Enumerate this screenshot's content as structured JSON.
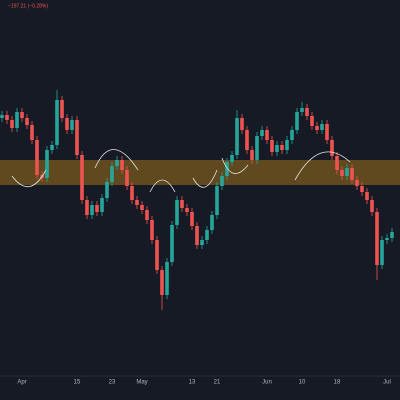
{
  "chart_data": {
    "type": "candlestick",
    "header": "−197.21 (−0.28%)",
    "categories": [
      null,
      null,
      null,
      null,
      "Apr",
      null,
      null,
      null,
      null,
      null,
      null,
      null,
      null,
      null,
      null,
      "15",
      null,
      null,
      null,
      null,
      null,
      null,
      "23",
      null,
      null,
      null,
      null,
      null,
      "May",
      null,
      null,
      null,
      null,
      null,
      null,
      null,
      null,
      null,
      "13",
      null,
      null,
      null,
      null,
      "21",
      null,
      null,
      null,
      null,
      null,
      null,
      null,
      null,
      null,
      "Jun",
      null,
      null,
      null,
      null,
      null,
      null,
      "10",
      null,
      null,
      null,
      null,
      null,
      null,
      "18",
      null,
      null,
      null,
      null,
      null,
      null,
      null,
      null,
      null,
      "Jul",
      null
    ],
    "open": [
      282,
      285,
      280,
      272,
      288,
      282,
      275,
      260,
      225,
      222,
      250,
      255,
      300,
      282,
      270,
      280,
      245,
      200,
      185,
      195,
      188,
      202,
      218,
      234,
      240,
      230,
      214,
      200,
      195,
      190,
      180,
      160,
      130,
      105,
      138,
      175,
      200,
      192,
      188,
      174,
      155,
      160,
      170,
      185,
      214,
      224,
      238,
      245,
      282,
      270,
      250,
      240,
      264,
      270,
      260,
      248,
      255,
      250,
      260,
      270,
      288,
      292,
      284,
      274,
      270,
      276,
      260,
      244,
      230,
      224,
      232,
      220,
      214,
      208,
      200,
      188,
      135,
      160,
      162
    ],
    "high": [
      289,
      289,
      284,
      292,
      292,
      286,
      279,
      264,
      229,
      254,
      259,
      310,
      304,
      286,
      284,
      284,
      249,
      204,
      199,
      199,
      206,
      222,
      238,
      244,
      244,
      234,
      218,
      204,
      199,
      194,
      184,
      164,
      134,
      142,
      179,
      204,
      204,
      196,
      192,
      178,
      164,
      174,
      189,
      218,
      228,
      242,
      249,
      290,
      286,
      274,
      254,
      268,
      274,
      274,
      264,
      259,
      259,
      264,
      274,
      292,
      298,
      296,
      288,
      278,
      280,
      280,
      264,
      248,
      234,
      236,
      236,
      224,
      218,
      212,
      204,
      192,
      164,
      166,
      172
    ],
    "low": [
      278,
      276,
      268,
      268,
      278,
      271,
      256,
      221,
      218,
      218,
      246,
      251,
      278,
      266,
      266,
      241,
      196,
      181,
      181,
      184,
      184,
      198,
      214,
      230,
      226,
      210,
      196,
      191,
      186,
      176,
      156,
      126,
      90,
      101,
      134,
      171,
      188,
      184,
      170,
      151,
      151,
      156,
      166,
      181,
      210,
      220,
      234,
      241,
      266,
      246,
      236,
      236,
      260,
      256,
      244,
      244,
      246,
      246,
      256,
      266,
      284,
      280,
      270,
      266,
      266,
      256,
      240,
      226,
      220,
      220,
      216,
      210,
      204,
      196,
      184,
      120,
      131,
      156,
      158
    ],
    "close": [
      285,
      280,
      272,
      288,
      282,
      275,
      260,
      225,
      222,
      250,
      255,
      300,
      282,
      270,
      280,
      245,
      200,
      185,
      195,
      188,
      202,
      218,
      234,
      240,
      230,
      214,
      200,
      195,
      190,
      180,
      160,
      130,
      105,
      138,
      175,
      200,
      192,
      188,
      174,
      155,
      160,
      170,
      185,
      214,
      224,
      238,
      245,
      282,
      270,
      250,
      240,
      264,
      270,
      260,
      248,
      255,
      250,
      260,
      270,
      288,
      292,
      284,
      274,
      270,
      276,
      260,
      244,
      230,
      224,
      232,
      220,
      214,
      208,
      200,
      188,
      135,
      160,
      162,
      168
    ],
    "up_color": "#26a69a",
    "down_color": "#ef5350",
    "zone": [
      215,
      240
    ],
    "zone_color": "#7a5a1e",
    "ylim": [
      25,
      400
    ]
  }
}
